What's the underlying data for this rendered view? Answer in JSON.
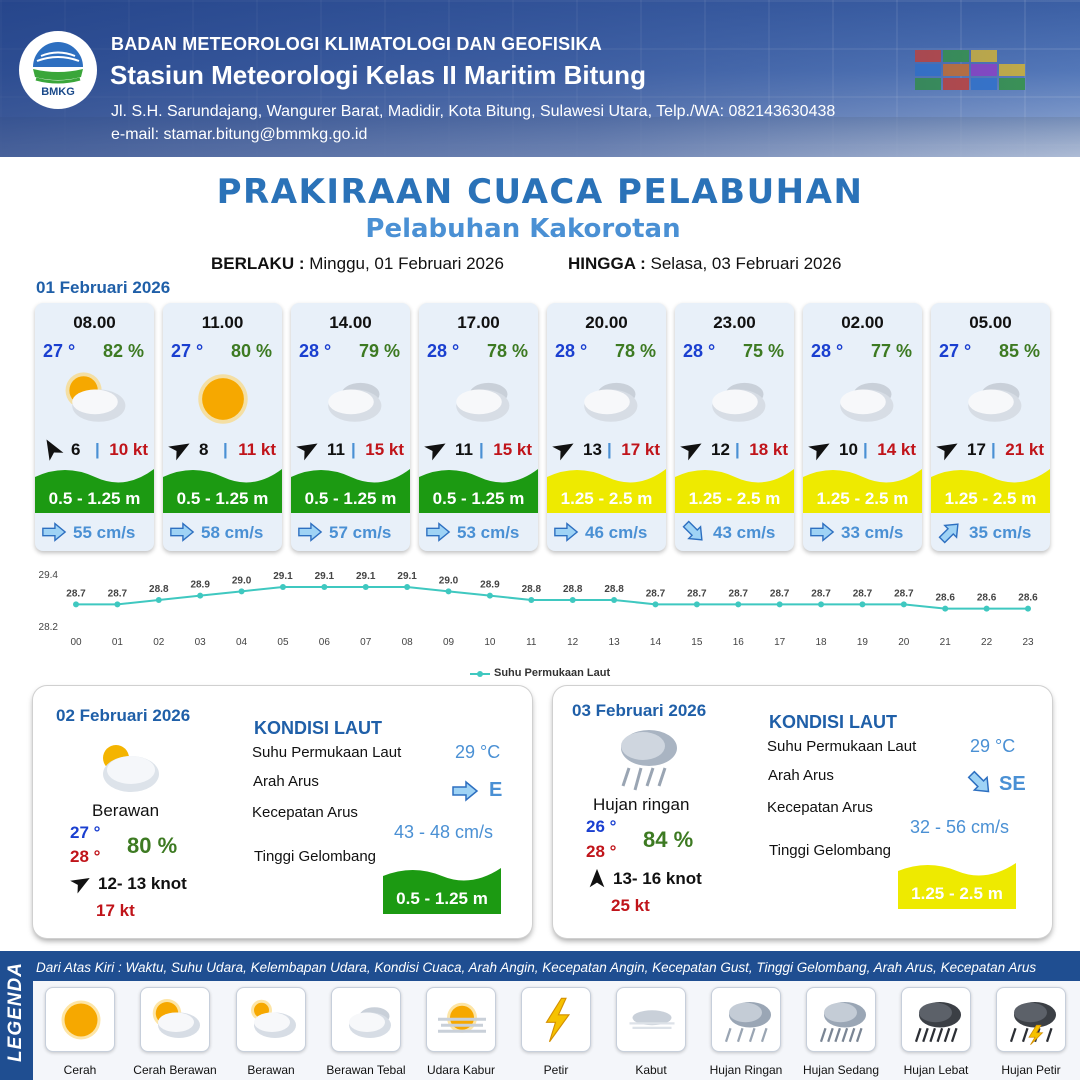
{
  "header": {
    "logo_text": "BMKG",
    "agency": "BADAN METEOROLOGI KLIMATOLOGI DAN GEOFISIKA",
    "station": "Stasiun Meteorologi Kelas II Maritim Bitung",
    "address": "Jl. S.H. Sarundajang, Wangurer Barat, Madidir, Kota Bitung, Sulawesi Utara, Telp./WA: 082143630438",
    "email": "e-mail: stamar.bitung@bmmkg.go.id"
  },
  "title": "PRAKIRAAN CUACA PELABUHAN",
  "subtitle": "Pelabuhan Kakorotan",
  "validity": {
    "from_label": "BERLAKU :",
    "from_value": "Minggu, 01 Februari 2026",
    "to_label": "HINGGA :",
    "to_value": "Selasa, 03 Februari 2026"
  },
  "day1_date": "01 Februari 2026",
  "colors": {
    "wave_low": "#1c9a12",
    "wave_mid": "#eeea00",
    "temp": "#1a3fd0",
    "humidity": "#3d7a22",
    "gust": "#c0141a",
    "current": "#4a90d4"
  },
  "hourly": [
    {
      "time": "08.00",
      "temp": "27 °",
      "humidity": "82 %",
      "icon": "cerah-berawan-icon",
      "wind_dir_deg": 150,
      "wind_speed": "6",
      "gust": "10 kt",
      "wave": "0.5 - 1.25 m",
      "wave_level": "low",
      "current_dir": "E",
      "current_speed": "55 cm/s"
    },
    {
      "time": "11.00",
      "temp": "27 °",
      "humidity": "80 %",
      "icon": "cerah-icon",
      "wind_dir_deg": 240,
      "wind_speed": "8",
      "gust": "11 kt",
      "wave": "0.5 - 1.25 m",
      "wave_level": "low",
      "current_dir": "E",
      "current_speed": "58 cm/s"
    },
    {
      "time": "14.00",
      "temp": "28 °",
      "humidity": "79 %",
      "icon": "berawan-tebal-icon",
      "wind_dir_deg": 240,
      "wind_speed": "11",
      "gust": "15 kt",
      "wave": "0.5 - 1.25 m",
      "wave_level": "low",
      "current_dir": "E",
      "current_speed": "57 cm/s"
    },
    {
      "time": "17.00",
      "temp": "28 °",
      "humidity": "78 %",
      "icon": "berawan-tebal-icon",
      "wind_dir_deg": 240,
      "wind_speed": "11",
      "gust": "15 kt",
      "wave": "0.5 - 1.25 m",
      "wave_level": "low",
      "current_dir": "E",
      "current_speed": "53 cm/s"
    },
    {
      "time": "20.00",
      "temp": "28 °",
      "humidity": "78 %",
      "icon": "berawan-tebal-icon",
      "wind_dir_deg": 240,
      "wind_speed": "13",
      "gust": "17 kt",
      "wave": "1.25 - 2.5 m",
      "wave_level": "mid",
      "current_dir": "E",
      "current_speed": "46 cm/s"
    },
    {
      "time": "23.00",
      "temp": "28 °",
      "humidity": "75 %",
      "icon": "berawan-tebal-icon",
      "wind_dir_deg": 240,
      "wind_speed": "12",
      "gust": "18 kt",
      "wave": "1.25 - 2.5 m",
      "wave_level": "mid",
      "current_dir": "SE",
      "current_speed": "43 cm/s"
    },
    {
      "time": "02.00",
      "temp": "28 °",
      "humidity": "77 %",
      "icon": "berawan-tebal-icon",
      "wind_dir_deg": 240,
      "wind_speed": "10",
      "gust": "14 kt",
      "wave": "1.25 - 2.5 m",
      "wave_level": "mid",
      "current_dir": "E",
      "current_speed": "33 cm/s"
    },
    {
      "time": "05.00",
      "temp": "27 °",
      "humidity": "85 %",
      "icon": "berawan-tebal-icon",
      "wind_dir_deg": 240,
      "wind_speed": "17",
      "gust": "21 kt",
      "wave": "1.25 - 2.5 m",
      "wave_level": "mid",
      "current_dir": "NE",
      "current_speed": "35 cm/s"
    }
  ],
  "chart_data": {
    "type": "line",
    "categories": [
      "00",
      "01",
      "02",
      "03",
      "04",
      "05",
      "06",
      "07",
      "08",
      "09",
      "10",
      "11",
      "12",
      "13",
      "14",
      "15",
      "16",
      "17",
      "18",
      "19",
      "20",
      "21",
      "22",
      "23"
    ],
    "series": [
      {
        "name": "Suhu Permukaan Laut",
        "values": [
          28.7,
          28.7,
          28.8,
          28.9,
          29.0,
          29.1,
          29.1,
          29.1,
          29.1,
          29.0,
          28.9,
          28.8,
          28.8,
          28.8,
          28.7,
          28.7,
          28.7,
          28.7,
          28.7,
          28.7,
          28.7,
          28.6,
          28.6,
          28.6
        ],
        "color": "#3fc8c0"
      }
    ],
    "ylim": [
      28.2,
      29.4
    ],
    "yticks": [
      "29.4",
      "28.2"
    ],
    "legend_position": "bottom-center",
    "grid": false
  },
  "daily": [
    {
      "date": "02 Februari 2026",
      "weather": "Berawan",
      "icon": "berawan-icon",
      "temp_min": "27 °",
      "temp_max": "28 °",
      "humidity": "80 %",
      "wind": "12- 13 knot",
      "wind_dir_deg": 240,
      "gust": "17 kt",
      "kondisi": "KONDISI LAUT",
      "sst_label": "Suhu Permukaan Laut",
      "sst": "29 °C",
      "current_dir_label": "Arah Arus",
      "current_dir": "E",
      "current_speed_label": "Kecepatan Arus",
      "current_speed": "43 - 48 cm/s",
      "wave_label": "Tinggi Gelombang",
      "wave": "0.5 - 1.25 m",
      "wave_level": "low"
    },
    {
      "date": "03 Februari 2026",
      "weather": "Hujan ringan",
      "icon": "hujan-ringan-icon",
      "temp_min": "26 °",
      "temp_max": "28 °",
      "humidity": "84 %",
      "wind": "13- 16 knot",
      "wind_dir_deg": 180,
      "gust": "25 kt",
      "kondisi": "KONDISI LAUT",
      "sst_label": "Suhu Permukaan Laut",
      "sst": "29 °C",
      "current_dir_label": "Arah Arus",
      "current_dir": "SE",
      "current_speed_label": "Kecepatan Arus",
      "current_speed": "32 - 56 cm/s",
      "wave_label": "Tinggi Gelombang",
      "wave": "1.25 - 2.5 m",
      "wave_level": "mid"
    }
  ],
  "legend": {
    "side_label": "LEGENDA",
    "description": "Dari Atas Kiri : Waktu, Suhu Udara, Kelembapan Udara, Kondisi Cuaca, Arah Angin, Kecepatan Angin, Kecepatan Gust, Tinggi Gelombang, Arah Arus, Kecepatan Arus",
    "items": [
      {
        "label": "Cerah",
        "icon": "cerah-icon"
      },
      {
        "label": "Cerah Berawan",
        "icon": "cerah-berawan-icon"
      },
      {
        "label": "Berawan",
        "icon": "berawan-icon"
      },
      {
        "label": "Berawan Tebal",
        "icon": "berawan-tebal-icon"
      },
      {
        "label": "Udara Kabur",
        "icon": "udara-kabur-icon"
      },
      {
        "label": "Petir",
        "icon": "petir-icon"
      },
      {
        "label": "Kabut",
        "icon": "kabut-icon"
      },
      {
        "label": "Hujan Ringan",
        "icon": "hujan-ringan-icon"
      },
      {
        "label": "Hujan Sedang",
        "icon": "hujan-sedang-icon"
      },
      {
        "label": "Hujan Lebat",
        "icon": "hujan-lebat-icon"
      },
      {
        "label": "Hujan Petir",
        "icon": "hujan-petir-icon"
      }
    ]
  }
}
